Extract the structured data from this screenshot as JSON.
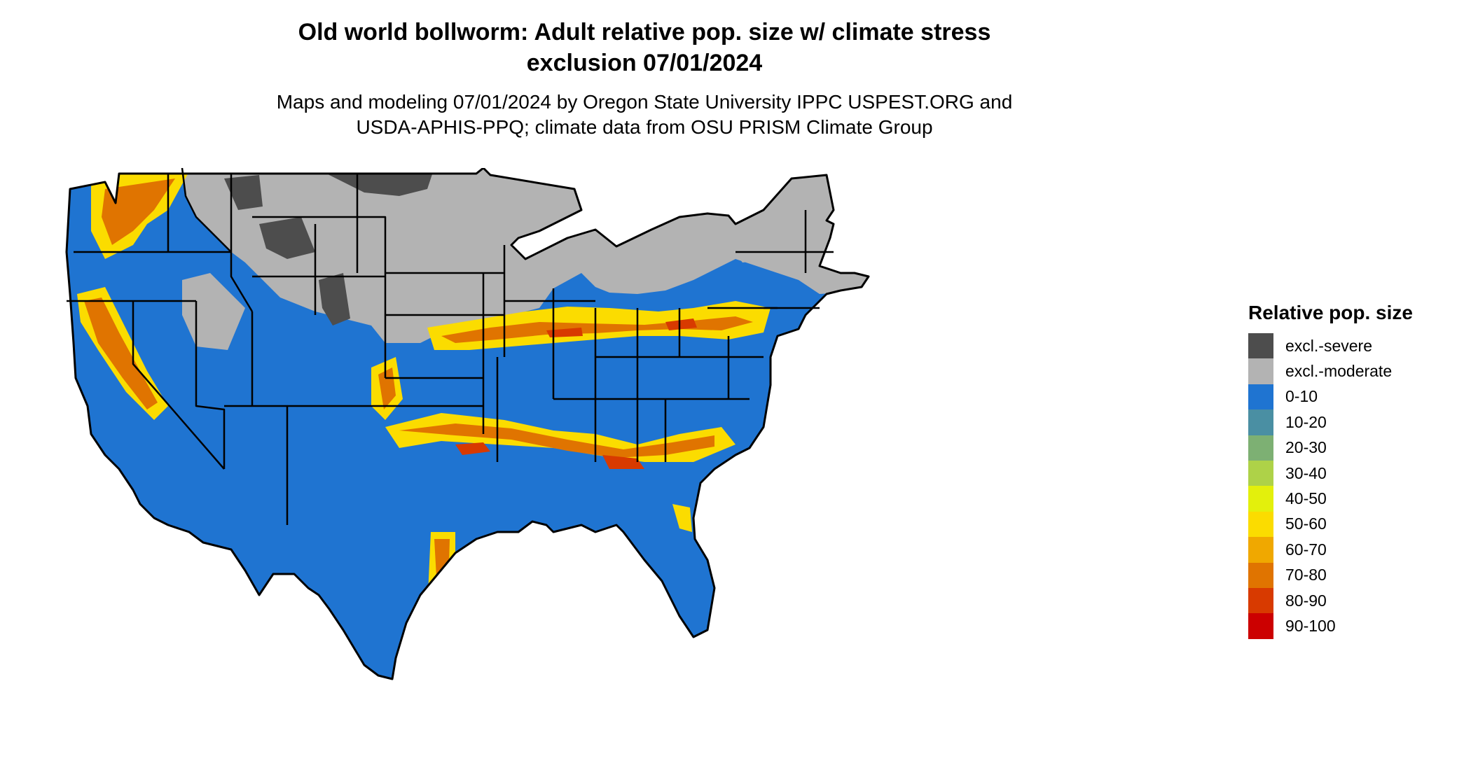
{
  "title": {
    "line1": "Old world bollworm: Adult relative pop. size w/ climate stress",
    "line2": "exclusion 07/01/2024"
  },
  "subtitle": {
    "line1": "Maps and modeling 07/01/2024 by Oregon State University IPPC USPEST.ORG and",
    "line2": "USDA-APHIS-PPQ; climate data from OSU PRISM Climate Group"
  },
  "legend": {
    "title": "Relative pop. size",
    "items": [
      {
        "label": "excl.-severe",
        "color": "#4d4d4d"
      },
      {
        "label": "excl.-moderate",
        "color": "#b3b3b3"
      },
      {
        "label": "0-10",
        "color": "#1f74d1"
      },
      {
        "label": "10-20",
        "color": "#4a8fa3"
      },
      {
        "label": "20-30",
        "color": "#7db073"
      },
      {
        "label": "30-40",
        "color": "#aed248"
      },
      {
        "label": "40-50",
        "color": "#e3f00c"
      },
      {
        "label": "50-60",
        "color": "#fbdc00"
      },
      {
        "label": "60-70",
        "color": "#f0a800"
      },
      {
        "label": "70-80",
        "color": "#e07400"
      },
      {
        "label": "80-90",
        "color": "#d83a00"
      },
      {
        "label": "90-100",
        "color": "#cc0000"
      }
    ]
  },
  "map": {
    "region": "conterminous-us",
    "colors": {
      "outline": "#000000",
      "severe": "#4d4d4d",
      "moderate": "#b3b3b3",
      "low": "#1f74d1",
      "yellow": "#fbdc00",
      "orange": "#e07400",
      "red": "#d83a00"
    }
  }
}
